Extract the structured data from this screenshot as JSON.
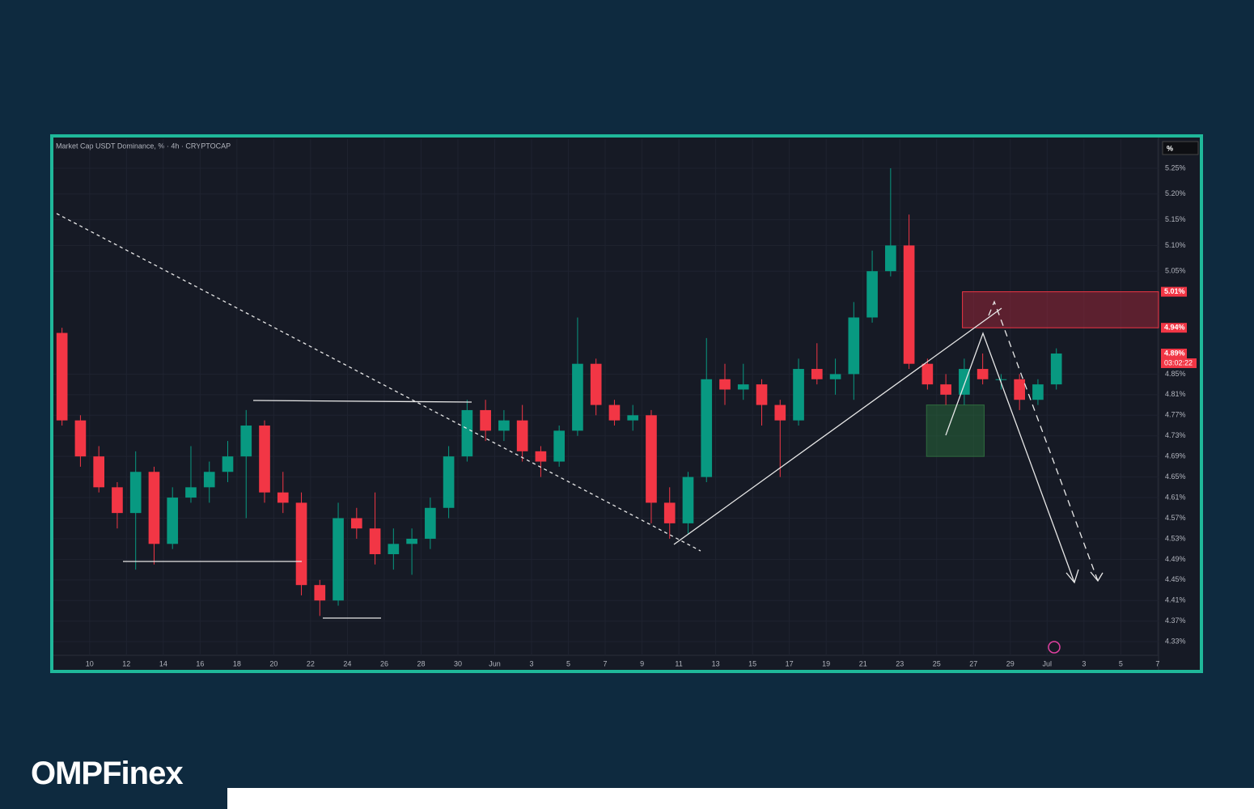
{
  "brand": "OMPFinex",
  "chart_data": {
    "type": "candlestick",
    "title": "Market Cap USDT Dominance, % · 4h · CRYPTOCAP",
    "unit_label": "%",
    "x": [
      8,
      9,
      10,
      11,
      12,
      13,
      14,
      15,
      16,
      17,
      18,
      19,
      20,
      21,
      22,
      23,
      24,
      25,
      26,
      27,
      28,
      29,
      30,
      31,
      32,
      33,
      34,
      35,
      36,
      37,
      38,
      39,
      40,
      41,
      42,
      43,
      44,
      45,
      46,
      47,
      48,
      49,
      50,
      51,
      52,
      53,
      54,
      55,
      56,
      57,
      58,
      59,
      60,
      61,
      62
    ],
    "open": [
      4.93,
      4.76,
      4.69,
      4.63,
      4.58,
      4.66,
      4.52,
      4.61,
      4.63,
      4.66,
      4.69,
      4.75,
      4.62,
      4.6,
      4.44,
      4.41,
      4.57,
      4.55,
      4.5,
      4.52,
      4.53,
      4.59,
      4.69,
      4.78,
      4.74,
      4.76,
      4.7,
      4.68,
      4.74,
      4.87,
      4.79,
      4.76,
      4.77,
      4.6,
      4.56,
      4.65,
      4.84,
      4.82,
      4.83,
      4.79,
      4.76,
      4.86,
      4.84,
      4.85,
      4.96,
      5.05,
      5.1,
      4.87,
      4.83,
      4.81,
      4.86,
      4.84,
      4.84,
      4.8,
      4.83
    ],
    "high": [
      4.94,
      4.77,
      4.71,
      4.64,
      4.7,
      4.67,
      4.63,
      4.71,
      4.68,
      4.72,
      4.78,
      4.76,
      4.66,
      4.62,
      4.45,
      4.6,
      4.59,
      4.62,
      4.55,
      4.55,
      4.61,
      4.71,
      4.8,
      4.8,
      4.78,
      4.79,
      4.71,
      4.75,
      4.96,
      4.88,
      4.8,
      4.79,
      4.78,
      4.63,
      4.66,
      4.92,
      4.87,
      4.87,
      4.84,
      4.8,
      4.88,
      4.91,
      4.88,
      4.99,
      5.09,
      5.25,
      5.16,
      4.88,
      4.85,
      4.88,
      4.89,
      4.85,
      4.85,
      4.84,
      4.9
    ],
    "low": [
      4.75,
      4.67,
      4.62,
      4.55,
      4.47,
      4.48,
      4.51,
      4.6,
      4.6,
      4.64,
      4.57,
      4.6,
      4.58,
      4.42,
      4.38,
      4.4,
      4.53,
      4.48,
      4.47,
      4.46,
      4.51,
      4.57,
      4.68,
      4.72,
      4.72,
      4.68,
      4.65,
      4.67,
      4.73,
      4.77,
      4.75,
      4.74,
      4.56,
      4.53,
      4.54,
      4.64,
      4.79,
      4.8,
      4.75,
      4.65,
      4.75,
      4.83,
      4.81,
      4.8,
      4.95,
      5.04,
      4.86,
      4.82,
      4.79,
      4.79,
      4.83,
      4.82,
      4.78,
      4.79,
      4.82
    ],
    "close": [
      4.76,
      4.69,
      4.63,
      4.58,
      4.66,
      4.52,
      4.61,
      4.63,
      4.66,
      4.69,
      4.75,
      4.62,
      4.6,
      4.44,
      4.41,
      4.57,
      4.55,
      4.5,
      4.52,
      4.53,
      4.59,
      4.69,
      4.78,
      4.74,
      4.76,
      4.7,
      4.68,
      4.74,
      4.87,
      4.79,
      4.76,
      4.77,
      4.6,
      4.56,
      4.65,
      4.84,
      4.82,
      4.83,
      4.79,
      4.76,
      4.86,
      4.84,
      4.85,
      4.96,
      5.05,
      5.1,
      4.87,
      4.83,
      4.81,
      4.86,
      4.84,
      4.84,
      4.8,
      4.83,
      4.89
    ],
    "up_color": "#089981",
    "down_color": "#f23645",
    "xlim": [
      7.9,
      68.05
    ],
    "xticks": [
      10,
      12,
      14,
      16,
      18,
      20,
      22,
      24,
      26,
      28,
      30,
      {
        "value": 32,
        "label": "Jun"
      },
      {
        "value": 34,
        "label": "3"
      },
      {
        "value": 36,
        "label": "5"
      },
      {
        "value": 38,
        "label": "7"
      },
      {
        "value": 40,
        "label": "9"
      },
      {
        "value": 42,
        "label": "11"
      },
      {
        "value": 44,
        "label": "13"
      },
      {
        "value": 46,
        "label": "15"
      },
      {
        "value": 48,
        "label": "17"
      },
      {
        "value": 50,
        "label": "19"
      },
      {
        "value": 52,
        "label": "21"
      },
      {
        "value": 54,
        "label": "23"
      },
      {
        "value": 56,
        "label": "25"
      },
      {
        "value": 58,
        "label": "27"
      },
      {
        "value": 60,
        "label": "29"
      },
      {
        "value": 62,
        "label": "Jul"
      },
      {
        "value": 64,
        "label": "3"
      },
      {
        "value": 66,
        "label": "5"
      },
      {
        "value": 68,
        "label": "7"
      }
    ],
    "ylim": [
      4.3035,
      5.3066
    ],
    "yticks": [
      {
        "value": 5.25,
        "label": "5.25%"
      },
      {
        "value": 5.2,
        "label": "5.20%"
      },
      {
        "value": 5.15,
        "label": "5.15%"
      },
      {
        "value": 5.1,
        "label": "5.10%"
      },
      {
        "value": 5.05,
        "label": "5.05%"
      },
      {
        "value": 4.85,
        "label": "4.85%"
      },
      {
        "value": 4.81,
        "label": "4.81%"
      },
      {
        "value": 4.77,
        "label": "4.77%"
      },
      {
        "value": 4.73,
        "label": "4.73%"
      },
      {
        "value": 4.69,
        "label": "4.69%"
      },
      {
        "value": 4.65,
        "label": "4.65%"
      },
      {
        "value": 4.61,
        "label": "4.61%"
      },
      {
        "value": 4.57,
        "label": "4.57%"
      },
      {
        "value": 4.53,
        "label": "4.53%"
      },
      {
        "value": 4.49,
        "label": "4.49%"
      },
      {
        "value": 4.45,
        "label": "4.45%"
      },
      {
        "value": 4.41,
        "label": "4.41%"
      },
      {
        "value": 4.37,
        "label": "4.37%"
      },
      {
        "value": 4.33,
        "label": "4.33%"
      }
    ],
    "grid": true,
    "zones": [
      {
        "low": 4.94,
        "high": 5.01,
        "start": 57.4,
        "end": 68.05,
        "color": "rgba(178,40,60,0.45)",
        "edge": "#f23645"
      },
      {
        "low": 4.69,
        "high": 4.79,
        "start": 55.45,
        "end": 58.58,
        "color": "rgba(40,110,60,0.5)",
        "edge": "#2e6b3e"
      }
    ],
    "price_labels": [
      {
        "value": 5.01,
        "label": "5.01%",
        "color": "#f23645"
      },
      {
        "value": 4.94,
        "label": "4.94%",
        "color": "#f23645"
      },
      {
        "value": 4.89,
        "label": "4.89%",
        "color": "#f23645"
      }
    ],
    "countdown": "03:02:22"
  }
}
